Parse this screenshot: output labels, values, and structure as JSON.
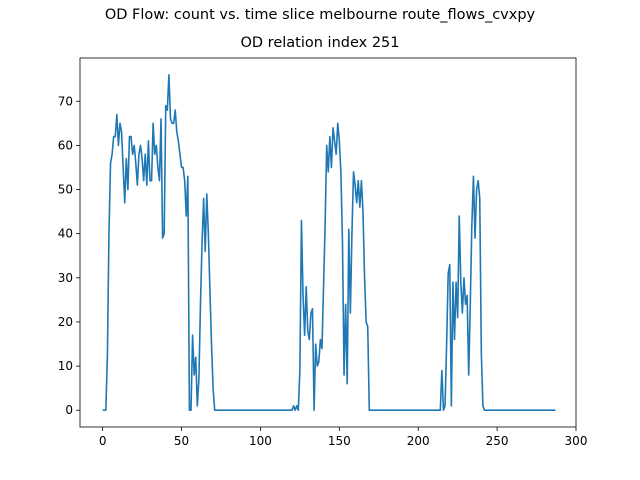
{
  "chart_data": {
    "type": "line",
    "suptitle": "OD Flow: count vs. time slice melbourne route_flows_cvxpy",
    "title": "OD relation index 251",
    "xlabel": "",
    "ylabel": "",
    "xlim": [
      -14.35,
      300
    ],
    "ylim": [
      -3.8,
      79.8
    ],
    "xticks": [
      0,
      50,
      100,
      150,
      200,
      250,
      300
    ],
    "yticks": [
      0,
      10,
      20,
      30,
      40,
      50,
      60,
      70
    ],
    "grid": false,
    "colors": {
      "line": "#1f77b4"
    },
    "series": [
      {
        "x": [
          0,
          1,
          2,
          3,
          4,
          5,
          6,
          7,
          8,
          9,
          10,
          11,
          12,
          13,
          14,
          15,
          16,
          17,
          18,
          19,
          20,
          21,
          22,
          23,
          24,
          25,
          26,
          27,
          28,
          29,
          30,
          31,
          32,
          33,
          34,
          35,
          36,
          37,
          38,
          39,
          40,
          41,
          42,
          43,
          44,
          45,
          46,
          47,
          48,
          49,
          50,
          51,
          52,
          53,
          54,
          55,
          56,
          57,
          58,
          59,
          60,
          61,
          62,
          63,
          64,
          65,
          66,
          67,
          68,
          69,
          70,
          71,
          72,
          73,
          120,
          121,
          122,
          123,
          124,
          125,
          126,
          127,
          128,
          129,
          130,
          131,
          132,
          133,
          134,
          135,
          136,
          137,
          138,
          139,
          140,
          141,
          142,
          143,
          144,
          145,
          146,
          147,
          148,
          149,
          150,
          151,
          152,
          153,
          154,
          155,
          156,
          157,
          158,
          159,
          160,
          161,
          162,
          163,
          164,
          165,
          166,
          167,
          168,
          169,
          213,
          214,
          215,
          216,
          217,
          218,
          219,
          220,
          221,
          222,
          223,
          224,
          225,
          226,
          227,
          228,
          229,
          230,
          231,
          232,
          233,
          234,
          235,
          236,
          237,
          238,
          239,
          240,
          241,
          242,
          287
        ],
        "y": [
          0,
          0,
          0,
          12,
          40,
          56,
          58,
          62,
          62,
          67,
          60,
          65,
          63,
          55,
          47,
          57,
          50,
          62,
          62,
          58,
          60,
          56,
          51,
          58,
          60,
          57,
          52,
          58,
          51,
          61,
          52,
          52,
          65,
          58,
          60,
          55,
          52,
          66,
          39,
          40,
          69,
          68,
          76,
          66,
          65,
          65,
          68,
          63,
          61,
          58,
          55,
          55,
          52,
          44,
          53,
          0,
          0,
          17,
          8,
          12,
          1,
          7,
          24,
          38,
          48,
          36,
          49,
          40,
          27,
          15,
          5,
          0,
          0,
          0,
          0,
          1,
          0,
          1,
          0,
          9,
          43,
          26,
          17,
          28,
          18,
          16,
          22,
          23,
          0,
          15,
          10,
          11,
          16,
          14,
          28,
          42,
          60,
          54,
          62,
          55,
          64,
          61,
          58,
          65,
          61,
          54,
          38,
          8,
          24,
          6,
          41,
          22,
          40,
          54,
          51,
          47,
          52,
          46,
          52,
          45,
          30,
          20,
          19,
          0,
          0,
          0,
          9,
          0,
          1,
          15,
          31,
          33,
          1,
          29,
          16,
          29,
          21,
          44,
          29,
          22,
          30,
          24,
          26,
          8,
          24,
          42,
          53,
          39,
          50,
          52,
          48,
          13,
          1,
          0,
          0
        ]
      }
    ]
  }
}
